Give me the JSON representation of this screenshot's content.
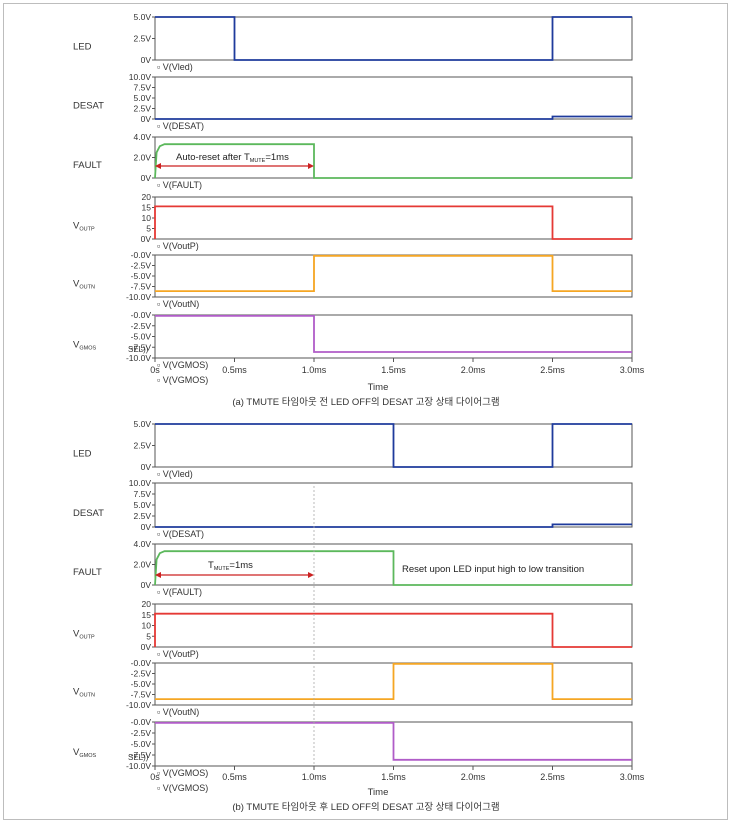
{
  "colors": {
    "led": "#1f3b9c",
    "desat": "#1f3b9c",
    "fault": "#5cb85c",
    "voutp": "#e53935",
    "voutn": "#f5a623",
    "vgmos": "#b05cc8",
    "arrow": "#cc2222"
  },
  "figures": [
    {
      "caption": "(a) TMUTE 타임아웃 전 LED OFF의 DESAT 고장 상태 다이어그램",
      "xlabel": "Time",
      "xticks": [
        "0s",
        "0.5ms",
        "1.0ms",
        "1.5ms",
        "2.0ms",
        "2.5ms",
        "3.0ms"
      ],
      "annotation": {
        "text": "Auto-reset after T",
        "sub": "MUTE",
        "suffix": "=1ms",
        "from_ms": 0,
        "to_ms": 1.0
      },
      "panels": [
        {
          "label": "LED",
          "label_sub": "",
          "trace": "V(Vled)",
          "ymin": 0,
          "ymax": 5,
          "yticks": [
            "5.0V",
            "2.5V",
            "0V"
          ],
          "color_key": "led",
          "points": [
            [
              0,
              5
            ],
            [
              0.5,
              5
            ],
            [
              0.5,
              0
            ],
            [
              2.5,
              0
            ],
            [
              2.5,
              5
            ],
            [
              3.0,
              5
            ]
          ]
        },
        {
          "label": "DESAT",
          "label_sub": "",
          "trace": "V(DESAT)",
          "ymin": 0,
          "ymax": 10,
          "yticks": [
            "10.0V",
            "7.5V",
            "5.0V",
            "2.5V",
            "0V"
          ],
          "color_key": "desat",
          "points": [
            [
              0,
              0
            ],
            [
              2.5,
              0
            ],
            [
              2.5,
              0.6
            ],
            [
              3.0,
              0.6
            ]
          ]
        },
        {
          "label": "FAULT",
          "label_sub": "",
          "trace": "V(FAULT)",
          "ymin": 0,
          "ymax": 4,
          "yticks": [
            "4.0V",
            "2.0V",
            "0V"
          ],
          "color_key": "fault",
          "points": [
            [
              0,
              0
            ],
            [
              0.01,
              2.5
            ],
            [
              0.03,
              3.1
            ],
            [
              0.06,
              3.3
            ],
            [
              1.0,
              3.3
            ],
            [
              1.0,
              0
            ],
            [
              3.0,
              0
            ]
          ]
        },
        {
          "label": "V",
          "label_sub": "OUTP",
          "trace": "V(VoutP)",
          "ymin": 0,
          "ymax": 20,
          "yticks": [
            "20",
            "15",
            "10",
            "5",
            "0V"
          ],
          "color_key": "voutp",
          "points": [
            [
              0,
              0
            ],
            [
              0,
              15.5
            ],
            [
              2.5,
              15.5
            ],
            [
              2.5,
              0
            ],
            [
              3.0,
              0
            ]
          ]
        },
        {
          "label": "V",
          "label_sub": "OUTN",
          "trace": "V(VoutN)",
          "ymin": -10,
          "ymax": 0,
          "yticks": [
            "-0.0V",
            "-2.5V",
            "-5.0V",
            "-7.5V",
            "-10.0V"
          ],
          "color_key": "voutn",
          "points": [
            [
              0,
              -8.6
            ],
            [
              1.0,
              -8.6
            ],
            [
              1.0,
              -0.2
            ],
            [
              2.5,
              -0.2
            ],
            [
              2.5,
              -8.6
            ],
            [
              3.0,
              -8.6
            ]
          ]
        },
        {
          "label": "V",
          "label_sub": "GMOS",
          "trace": "V(VGMOS)",
          "ymin": -10,
          "ymax": 0,
          "yticks": [
            "-0.0V",
            "-2.5V",
            "-5.0V",
            "-7.5V",
            "-10.0V"
          ],
          "sel": "SEL))",
          "color_key": "vgmos",
          "points": [
            [
              0,
              -0.2
            ],
            [
              1.0,
              -0.2
            ],
            [
              1.0,
              -8.6
            ],
            [
              3.0,
              -8.6
            ]
          ]
        }
      ]
    },
    {
      "caption": "(b) TMUTE 타임아웃 후 LED OFF의 DESAT 고장 상태 다이어그램",
      "xlabel": "Time",
      "xticks": [
        "0s",
        "0.5ms",
        "1.0ms",
        "1.5ms",
        "2.0ms",
        "2.5ms",
        "3.0ms"
      ],
      "annotation": {
        "text": "T",
        "sub": "MUTE",
        "suffix": "=1ms",
        "from_ms": 0,
        "to_ms": 1.0
      },
      "note": "Reset upon LED input high to low transition",
      "panels": [
        {
          "label": "LED",
          "label_sub": "",
          "trace": "V(Vled)",
          "ymin": 0,
          "ymax": 5,
          "yticks": [
            "5.0V",
            "2.5V",
            "0V"
          ],
          "color_key": "led",
          "points": [
            [
              0,
              5
            ],
            [
              1.5,
              5
            ],
            [
              1.5,
              0
            ],
            [
              2.5,
              0
            ],
            [
              2.5,
              5
            ],
            [
              3.0,
              5
            ]
          ]
        },
        {
          "label": "DESAT",
          "label_sub": "",
          "trace": "V(DESAT)",
          "ymin": 0,
          "ymax": 10,
          "yticks": [
            "10.0V",
            "7.5V",
            "5.0V",
            "2.5V",
            "0V"
          ],
          "color_key": "desat",
          "points": [
            [
              0,
              0
            ],
            [
              2.5,
              0
            ],
            [
              2.5,
              0.6
            ],
            [
              3.0,
              0.6
            ]
          ]
        },
        {
          "label": "FAULT",
          "label_sub": "",
          "trace": "V(FAULT)",
          "ymin": 0,
          "ymax": 4,
          "yticks": [
            "4.0V",
            "2.0V",
            "0V"
          ],
          "color_key": "fault",
          "points": [
            [
              0,
              0
            ],
            [
              0.01,
              2.5
            ],
            [
              0.03,
              3.1
            ],
            [
              0.06,
              3.3
            ],
            [
              1.5,
              3.3
            ],
            [
              1.5,
              0
            ],
            [
              3.0,
              0
            ]
          ]
        },
        {
          "label": "V",
          "label_sub": "OUTP",
          "trace": "V(VoutP)",
          "ymin": 0,
          "ymax": 20,
          "yticks": [
            "20",
            "15",
            "10",
            "5",
            "0V"
          ],
          "color_key": "voutp",
          "points": [
            [
              0,
              0
            ],
            [
              0,
              15.5
            ],
            [
              2.5,
              15.5
            ],
            [
              2.5,
              0
            ],
            [
              3.0,
              0
            ]
          ]
        },
        {
          "label": "V",
          "label_sub": "OUTN",
          "trace": "V(VoutN)",
          "ymin": -10,
          "ymax": 0,
          "yticks": [
            "-0.0V",
            "-2.5V",
            "-5.0V",
            "-7.5V",
            "-10.0V"
          ],
          "color_key": "voutn",
          "points": [
            [
              0,
              -8.6
            ],
            [
              1.5,
              -8.6
            ],
            [
              1.5,
              -0.2
            ],
            [
              2.5,
              -0.2
            ],
            [
              2.5,
              -8.6
            ],
            [
              3.0,
              -8.6
            ]
          ]
        },
        {
          "label": "V",
          "label_sub": "GMOS",
          "trace": "V(VGMOS)",
          "ymin": -10,
          "ymax": 0,
          "yticks": [
            "-0.0V",
            "-2.5V",
            "-5.0V",
            "-7.5V",
            "-10.0V"
          ],
          "sel": "SEL))",
          "color_key": "vgmos",
          "points": [
            [
              0,
              -0.2
            ],
            [
              1.5,
              -0.2
            ],
            [
              1.5,
              -8.6
            ],
            [
              3.0,
              -8.6
            ]
          ]
        }
      ]
    }
  ]
}
